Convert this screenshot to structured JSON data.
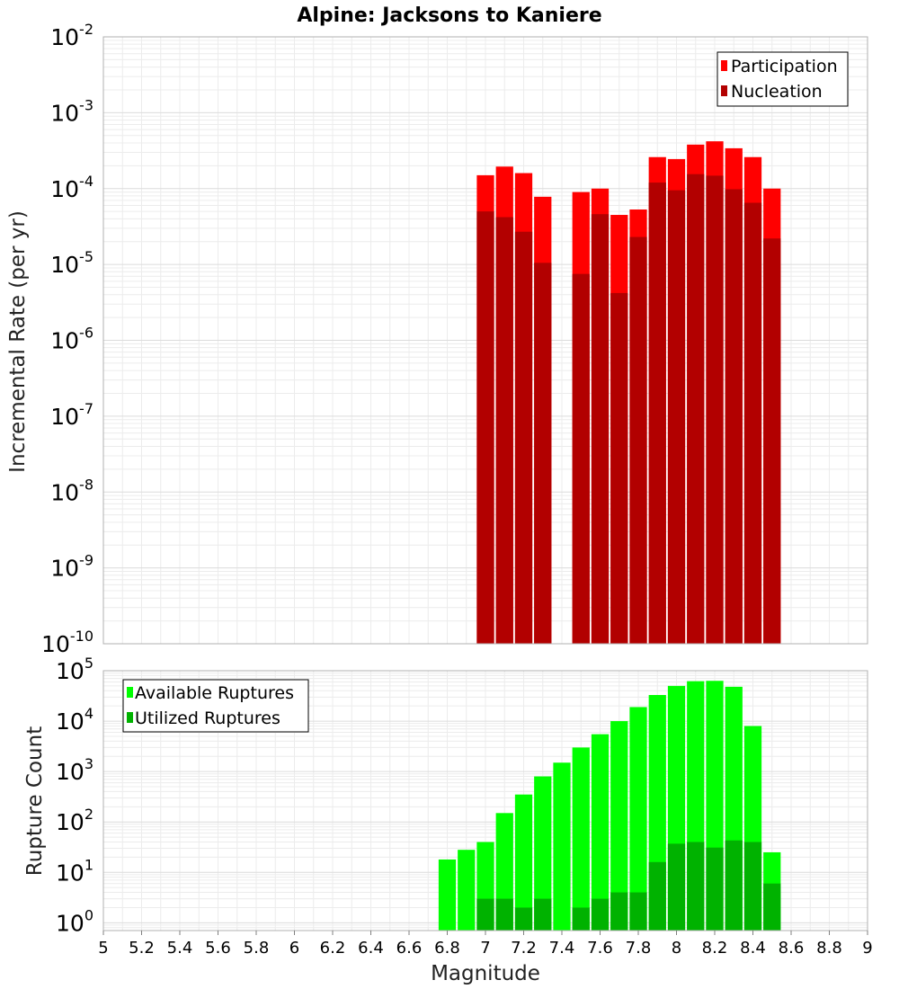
{
  "title": "Alpine: Jacksons to Kaniere",
  "chart_data": [
    {
      "type": "bar",
      "ylabel": "Incremental Rate (per yr)",
      "yscale": "log",
      "ylim": [
        1e-10,
        0.01
      ],
      "xlim": [
        5,
        9
      ],
      "bin_width": 0.1,
      "x": [
        7.0,
        7.1,
        7.2,
        7.3,
        7.5,
        7.6,
        7.7,
        7.8,
        7.9,
        8.0,
        8.1,
        8.2,
        8.3,
        8.4,
        8.5
      ],
      "series": [
        {
          "name": "Participation",
          "color": "#ff0000",
          "values": [
            0.00015,
            0.000195,
            0.00016,
            7.8e-05,
            9e-05,
            0.0001,
            4.5e-05,
            5.3e-05,
            0.00026,
            0.000245,
            0.00038,
            0.00042,
            0.00034,
            0.00026,
            0.0001
          ]
        },
        {
          "name": "Nucleation",
          "color": "#b20000",
          "values": [
            5e-05,
            4.2e-05,
            2.7e-05,
            1.05e-05,
            7.5e-06,
            4.6e-05,
            4.2e-06,
            2.3e-05,
            0.00012,
            9.5e-05,
            0.000155,
            0.000148,
            9.8e-05,
            6.5e-05,
            2.2e-05
          ]
        }
      ],
      "legend_position": "top-right",
      "grid": true
    },
    {
      "type": "bar",
      "xlabel": "Magnitude",
      "ylabel": "Rupture Count",
      "yscale": "log",
      "ylim": [
        0.7,
        100000.0
      ],
      "xlim": [
        5,
        9
      ],
      "bin_width": 0.1,
      "x": [
        6.8,
        6.9,
        7.0,
        7.1,
        7.2,
        7.3,
        7.4,
        7.5,
        7.6,
        7.7,
        7.8,
        7.9,
        8.0,
        8.1,
        8.2,
        8.3,
        8.4,
        8.5
      ],
      "series": [
        {
          "name": "Available Ruptures",
          "color": "#00ff00",
          "values": [
            18,
            28,
            40,
            150,
            350,
            800,
            1500,
            3000,
            5500,
            10000,
            19000,
            33000,
            50000,
            62000,
            63000,
            48000,
            8000,
            25
          ]
        },
        {
          "name": "Utilized Ruptures",
          "color": "#00b200",
          "values": [
            0,
            0,
            3,
            3,
            2,
            3,
            0,
            2,
            3,
            4,
            4,
            16,
            37,
            40,
            31,
            43,
            40,
            6
          ]
        }
      ],
      "xticks": [
        "5",
        "5.2",
        "5.4",
        "5.6",
        "5.8",
        "6",
        "6.2",
        "6.4",
        "6.6",
        "6.8",
        "7",
        "7.2",
        "7.4",
        "7.6",
        "7.8",
        "8",
        "8.2",
        "8.4",
        "8.6",
        "8.8",
        "9"
      ],
      "legend_position": "top-left",
      "grid": true
    }
  ],
  "top_yticks": [
    {
      "base": "10",
      "exp": "-2"
    },
    {
      "base": "10",
      "exp": "-3"
    },
    {
      "base": "10",
      "exp": "-4"
    },
    {
      "base": "10",
      "exp": "-5"
    },
    {
      "base": "10",
      "exp": "-6"
    },
    {
      "base": "10",
      "exp": "-7"
    },
    {
      "base": "10",
      "exp": "-8"
    },
    {
      "base": "10",
      "exp": "-9"
    },
    {
      "base": "10",
      "exp": "-10"
    }
  ],
  "bottom_yticks": [
    {
      "base": "10",
      "exp": "5"
    },
    {
      "base": "10",
      "exp": "4"
    },
    {
      "base": "10",
      "exp": "3"
    },
    {
      "base": "10",
      "exp": "2"
    },
    {
      "base": "10",
      "exp": "1"
    },
    {
      "base": "10",
      "exp": "0"
    }
  ]
}
